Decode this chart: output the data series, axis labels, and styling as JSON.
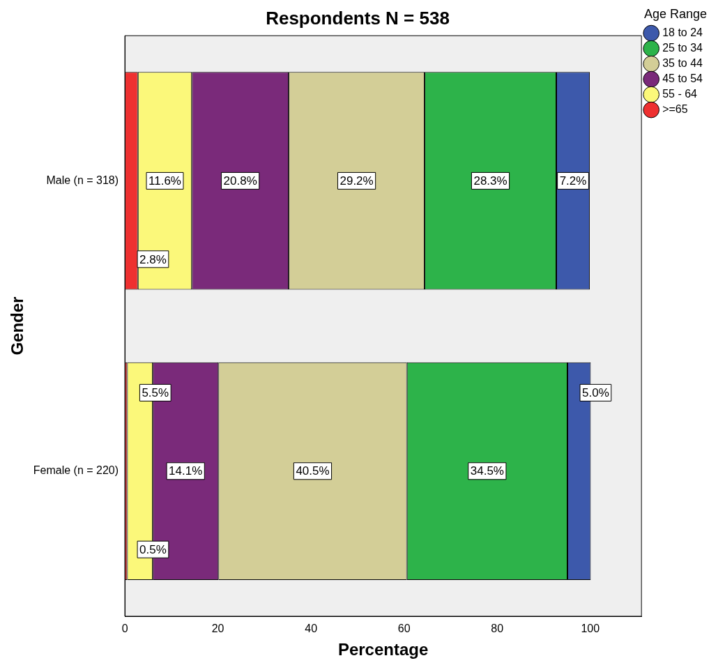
{
  "chart_data": {
    "type": "bar",
    "orientation": "horizontal",
    "stacked": true,
    "title": "Respondents N = 538",
    "xlabel": "Percentage",
    "ylabel": "Gender",
    "legend_title": "Age Range",
    "legend": "top right",
    "grid": false,
    "categories": [
      "Male (n = 318)",
      "Female (n = 220)"
    ],
    "series": [
      {
        "name": ">=65",
        "color": "#ee3030",
        "values": [
          2.8,
          0.5
        ],
        "value_labels": [
          "2.8%",
          "0.5%"
        ]
      },
      {
        "name": "55 - 64",
        "color": "#fbf87a",
        "values": [
          11.6,
          5.5
        ],
        "value_labels": [
          "11.6%",
          "5.5%"
        ]
      },
      {
        "name": "45 to 54",
        "color": "#7a2a7a",
        "values": [
          20.8,
          14.1
        ],
        "value_labels": [
          "20.8%",
          "14.1%"
        ]
      },
      {
        "name": "35 to 44",
        "color": "#d3ce97",
        "values": [
          29.2,
          40.5
        ],
        "value_labels": [
          "29.2%",
          "40.5%"
        ]
      },
      {
        "name": "25 to 34",
        "color": "#2db34a",
        "values": [
          28.3,
          34.5
        ],
        "value_labels": [
          "28.3%",
          "34.5%"
        ]
      },
      {
        "name": "18 to 24",
        "color": "#3d59ab",
        "values": [
          7.2,
          5.0
        ],
        "value_labels": [
          "7.2%",
          "5.0%"
        ]
      }
    ],
    "xlim": [
      0,
      111
    ],
    "xticks": [
      0,
      20,
      40,
      60,
      80,
      100
    ]
  }
}
